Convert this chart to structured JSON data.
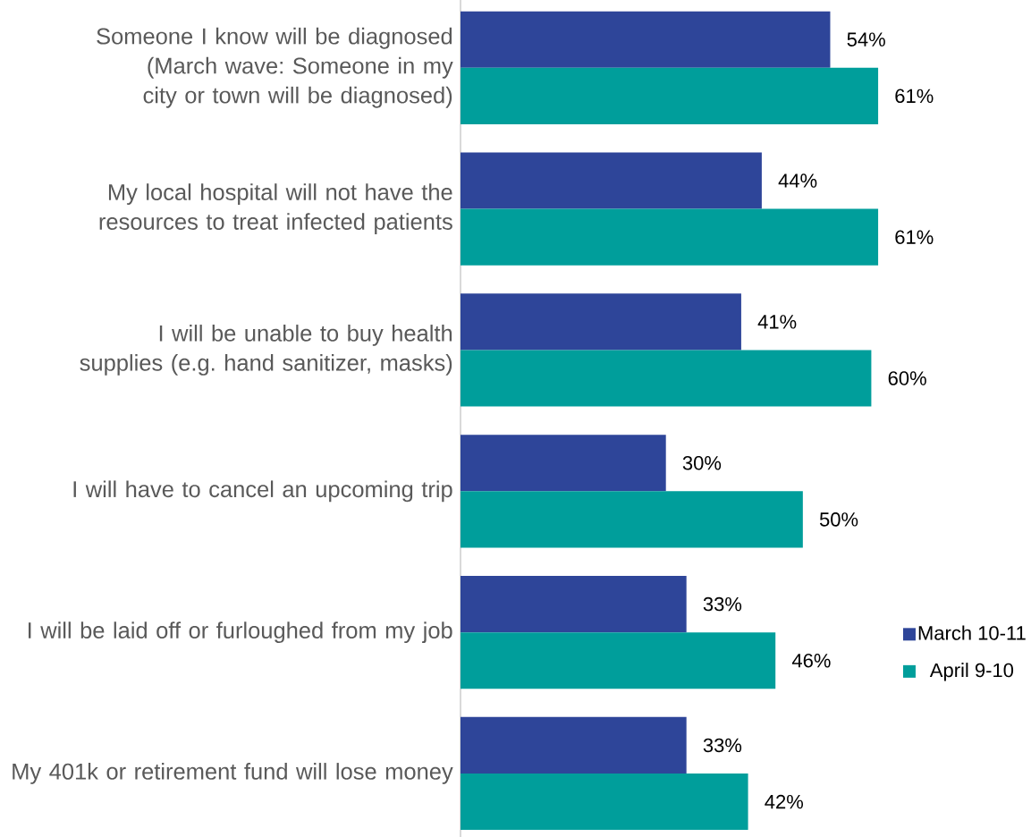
{
  "chart_data": {
    "type": "bar",
    "orientation": "horizontal",
    "categories": [
      "Someone I know will be diagnosed (March wave: Someone in my city or town will be diagnosed)",
      "My local hospital will not have the resources to treat infected patients",
      "I will be unable to buy health supplies (e.g. hand sanitizer, masks)",
      "I will have to cancel an upcoming trip",
      "I will be laid off or furloughed from my job",
      "My 401k or retirement fund will lose money"
    ],
    "series": [
      {
        "name": "March 10-11",
        "color": "#2e4599",
        "values": [
          54,
          44,
          41,
          30,
          33,
          33
        ],
        "value_labels": [
          "54%",
          "44%",
          "41%",
          "30%",
          "33%",
          "33%"
        ]
      },
      {
        "name": "April 9-10",
        "color": "#009e9b",
        "values": [
          61,
          61,
          60,
          50,
          46,
          42
        ],
        "value_labels": [
          "61%",
          "61%",
          "60%",
          "50%",
          "46%",
          "42%"
        ]
      }
    ],
    "legend": "right"
  }
}
